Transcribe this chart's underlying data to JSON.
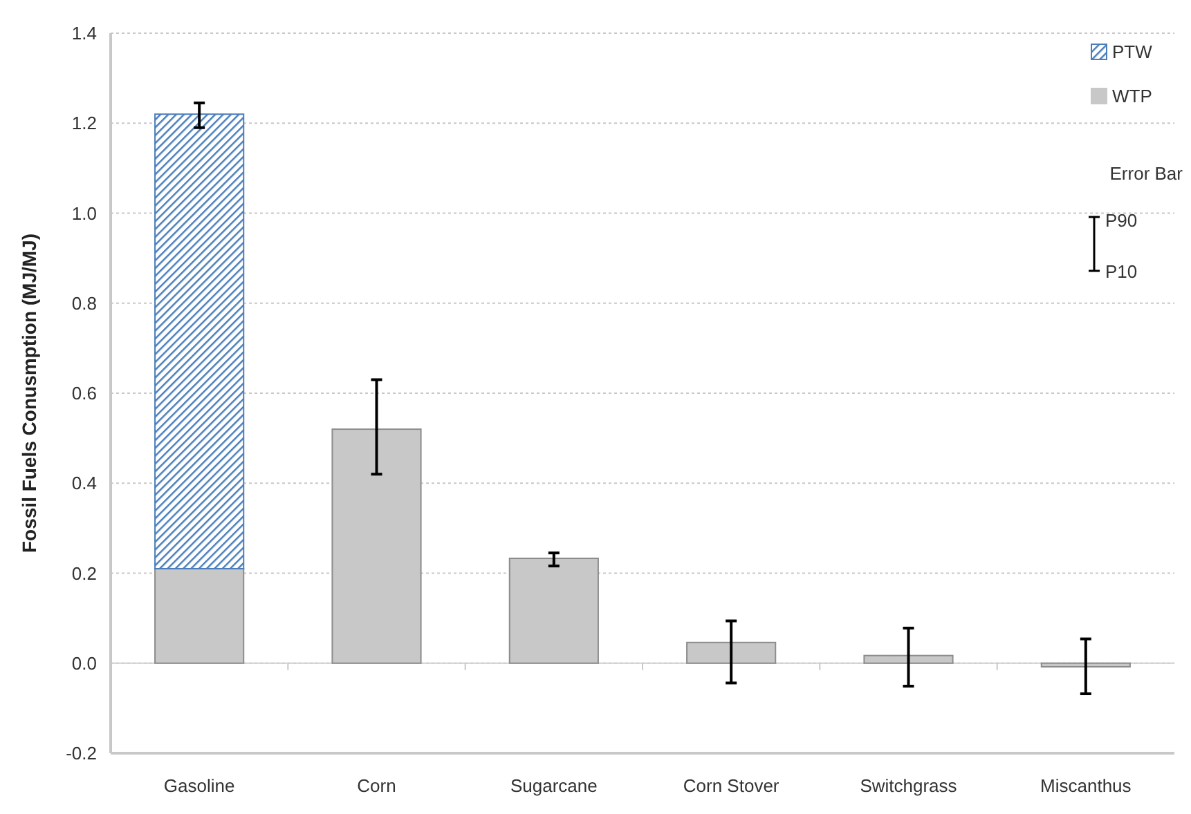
{
  "chart_data": {
    "type": "bar",
    "stacked": true,
    "ylabel": "Fossil Fuels Conusmption (MJ/MJ)",
    "categories": [
      "Gasoline",
      "Corn",
      "Sugarcane",
      "Corn Stover",
      "Switchgrass",
      "Miscanthus"
    ],
    "series": [
      {
        "name": "WTP",
        "color": "#c8c8c8",
        "values": [
          0.21,
          0.52,
          0.233,
          0.046,
          0.017,
          -0.008
        ],
        "errors": [
          null,
          [
            0.42,
            0.63
          ],
          [
            0.216,
            0.245
          ],
          [
            -0.044,
            0.094
          ],
          [
            -0.051,
            0.078
          ],
          [
            -0.068,
            0.054
          ]
        ]
      },
      {
        "name": "PTW",
        "color": "#4a7ebb",
        "values": [
          1.01,
          null,
          null,
          null,
          null,
          null
        ],
        "errors": [
          [
            1.19,
            1.245
          ],
          null,
          null,
          null,
          null,
          null
        ]
      }
    ],
    "ylim": [
      -0.2,
      1.4
    ],
    "yticks": [
      {
        "value": -0.2,
        "label": "-0.2"
      },
      {
        "value": 0,
        "label": "0.0"
      },
      0.2,
      0.4,
      0.6,
      0.8,
      {
        "value": 1,
        "label": "1.0"
      },
      1.2,
      1.4
    ],
    "grid": "y",
    "legend": "top right",
    "annotations": [
      "Error Bar",
      "P90",
      "P10"
    ]
  }
}
